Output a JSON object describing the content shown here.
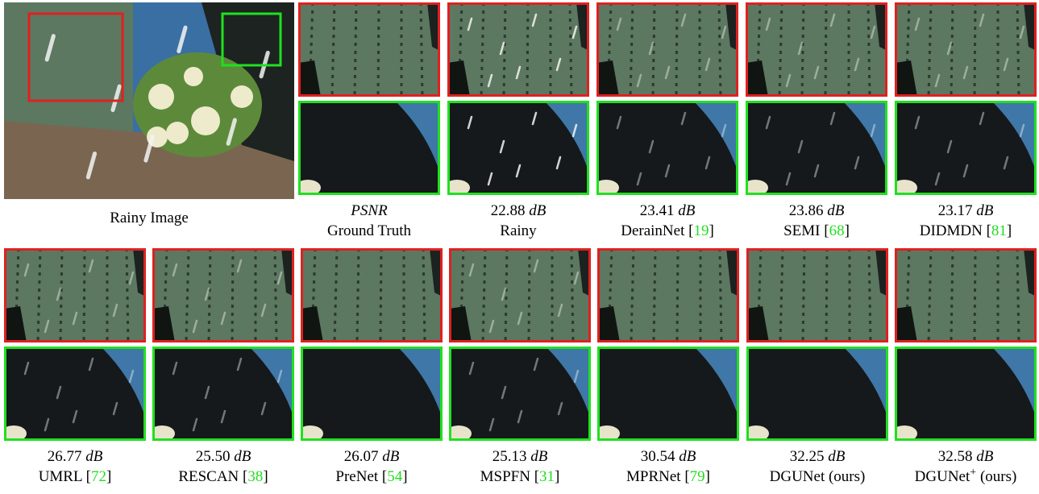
{
  "unit": "dB",
  "bracket_open": "[",
  "bracket_close": "]",
  "overview": {
    "caption": "Rainy Image"
  },
  "panels": [
    {
      "metric": "PSNR",
      "name": "Ground Truth"
    },
    {
      "psnr": "22.88",
      "name": "Rainy"
    },
    {
      "psnr": "23.41",
      "name": "DerainNet",
      "ref": "19"
    },
    {
      "psnr": "23.86",
      "name": "SEMI",
      "ref": "68"
    },
    {
      "psnr": "23.17",
      "name": "DIDMDN",
      "ref": "81"
    },
    {
      "psnr": "26.77",
      "name": "UMRL",
      "ref": "72"
    },
    {
      "psnr": "25.50",
      "name": "RESCAN",
      "ref": "38"
    },
    {
      "psnr": "26.07",
      "name": "PreNet",
      "ref": "54"
    },
    {
      "psnr": "25.13",
      "name": "MSPFN",
      "ref": "31"
    },
    {
      "psnr": "30.54",
      "name": "MPRNet",
      "ref": "79"
    },
    {
      "psnr": "32.25",
      "name": "DGUNet",
      "suffix": "(ours)"
    },
    {
      "psnr": "32.58",
      "name": "DGUNet",
      "sup": "+",
      "suffix": "(ours)"
    }
  ]
}
